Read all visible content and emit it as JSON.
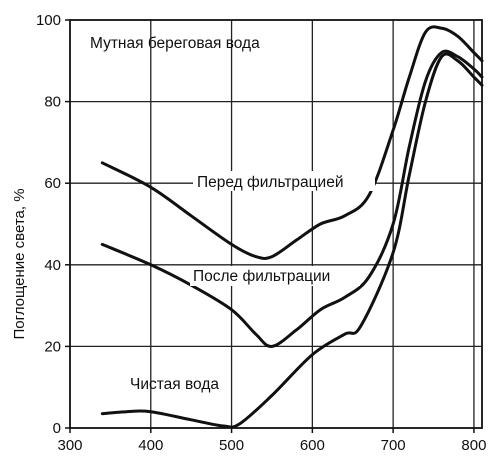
{
  "chart_data": {
    "type": "line",
    "title": "",
    "xlabel": "",
    "ylabel": "Поглощение света, %",
    "xlim": [
      300,
      810
    ],
    "ylim": [
      0,
      100
    ],
    "grid": true,
    "x_ticks": [
      300,
      400,
      500,
      600,
      700,
      800
    ],
    "y_ticks": [
      0,
      20,
      40,
      60,
      80,
      100
    ],
    "series": [
      {
        "name": "Перед фильтрацией",
        "color": "#111111",
        "x": [
          340,
          400,
          450,
          500,
          530,
          550,
          580,
          610,
          640,
          670,
          700,
          720,
          740,
          760,
          780,
          800,
          810
        ],
        "y": [
          65,
          59,
          52,
          45,
          42,
          42,
          46,
          50,
          52,
          57,
          73,
          86,
          97,
          98,
          96,
          92,
          90
        ]
      },
      {
        "name": "После фильтрации",
        "color": "#111111",
        "x": [
          340,
          400,
          450,
          500,
          530,
          550,
          580,
          610,
          640,
          670,
          700,
          720,
          740,
          760,
          780,
          800,
          810
        ],
        "y": [
          45,
          40,
          35,
          29,
          23,
          20,
          24,
          29,
          32,
          37,
          50,
          69,
          85,
          92,
          91,
          88,
          86
        ]
      },
      {
        "name": "Чистая вода",
        "color": "#111111",
        "x": [
          340,
          370,
          400,
          450,
          490,
          510,
          550,
          600,
          640,
          660,
          700,
          720,
          740,
          760,
          780,
          800,
          810
        ],
        "y": [
          3.5,
          4,
          4,
          2,
          0.5,
          1,
          8,
          18,
          23,
          25,
          43,
          62,
          80,
          91,
          90,
          86,
          84
        ]
      }
    ],
    "annotations": [
      "Мутная береговая вода",
      "Перед фильтрацией",
      "После фильтрации",
      "Чистая вода"
    ]
  }
}
